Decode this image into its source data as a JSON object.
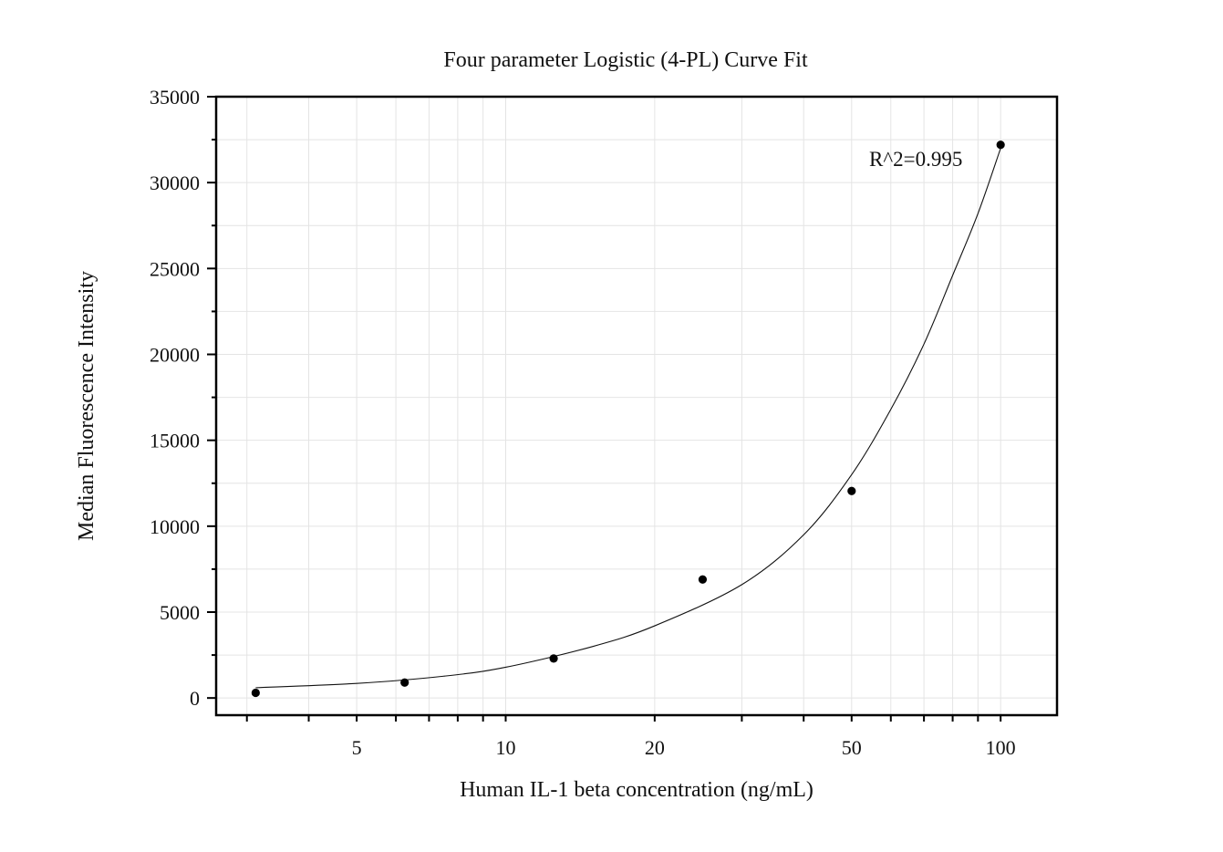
{
  "chart_data": {
    "type": "scatter",
    "title": "Four parameter Logistic (4-PL) Curve Fit",
    "xlabel": "Human IL-1 beta concentration (ng/mL)",
    "ylabel": "Median Fluorescence Intensity",
    "x_scale": "log",
    "xlim": [
      2.6,
      130
    ],
    "ylim": [
      -1000,
      35000
    ],
    "x_ticks": [
      5,
      10,
      20,
      50,
      100
    ],
    "x_tick_labels": [
      "5",
      "10",
      "20",
      "50",
      "100"
    ],
    "y_ticks": [
      0,
      5000,
      10000,
      15000,
      20000,
      25000,
      30000,
      35000
    ],
    "y_tick_labels": [
      "0",
      "5000",
      "10000",
      "15000",
      "20000",
      "25000",
      "30000",
      "35000"
    ],
    "grid": true,
    "series": [
      {
        "type": "scatter",
        "x": [
          3.125,
          6.25,
          12.5,
          25,
          50,
          100
        ],
        "y": [
          300,
          900,
          2300,
          6900,
          12050,
          32200
        ],
        "color": "#000000"
      },
      {
        "type": "line",
        "fit": "4-PL",
        "x": [
          3.125,
          5,
          7.5,
          10,
          15,
          20,
          30,
          40,
          50,
          60,
          70,
          80,
          90,
          100
        ],
        "y": [
          600,
          850,
          1270,
          1790,
          3000,
          4200,
          6600,
          9500,
          13000,
          16800,
          20600,
          24600,
          28200,
          32000
        ],
        "color": "#111111"
      }
    ],
    "annotations": [
      {
        "text": "R^2=0.995"
      }
    ]
  }
}
